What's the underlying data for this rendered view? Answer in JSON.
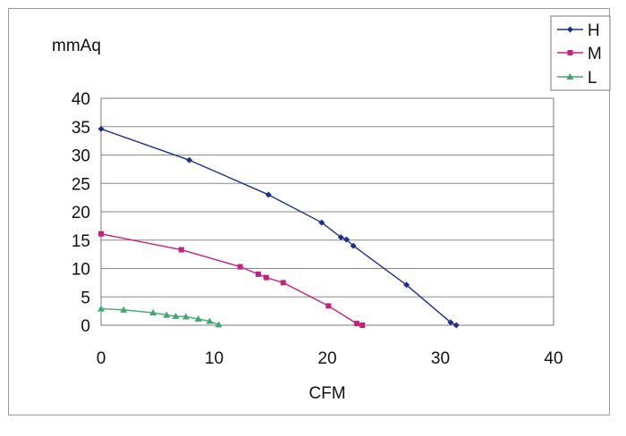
{
  "chart_data": {
    "type": "line",
    "xlabel": "CFM",
    "ylabel": "mmAq",
    "xlim": [
      0,
      40
    ],
    "ylim": [
      0,
      40
    ],
    "x_ticks": [
      "0",
      "10",
      "20",
      "30",
      "40"
    ],
    "y_ticks": [
      "0",
      "5",
      "10",
      "15",
      "20",
      "25",
      "30",
      "35",
      "40"
    ],
    "grid": "horizontal",
    "legend_position": "top-right",
    "series": [
      {
        "name": "H",
        "color": "#1f2f8f",
        "marker": "diamond",
        "points": [
          [
            0,
            34.6
          ],
          [
            7.8,
            29.1
          ],
          [
            14.8,
            23.0
          ],
          [
            19.5,
            18.1
          ],
          [
            21.2,
            15.5
          ],
          [
            21.7,
            15.1
          ],
          [
            22.3,
            14.0
          ],
          [
            27.0,
            7.1
          ],
          [
            30.9,
            0.5
          ],
          [
            31.4,
            0.0
          ]
        ]
      },
      {
        "name": "M",
        "color": "#c8207a",
        "marker": "square",
        "points": [
          [
            0,
            16.1
          ],
          [
            7.1,
            13.3
          ],
          [
            12.3,
            10.3
          ],
          [
            13.9,
            9.0
          ],
          [
            14.6,
            8.4
          ],
          [
            16.1,
            7.5
          ],
          [
            20.1,
            3.4
          ],
          [
            22.6,
            0.3
          ],
          [
            23.1,
            0.0
          ]
        ]
      },
      {
        "name": "L",
        "color": "#3fa86c",
        "marker": "triangle",
        "points": [
          [
            0,
            2.9
          ],
          [
            2.0,
            2.7
          ],
          [
            4.6,
            2.2
          ],
          [
            5.8,
            1.8
          ],
          [
            6.6,
            1.6
          ],
          [
            7.5,
            1.5
          ],
          [
            8.6,
            1.1
          ],
          [
            9.6,
            0.7
          ],
          [
            10.4,
            0.1
          ]
        ]
      }
    ]
  }
}
